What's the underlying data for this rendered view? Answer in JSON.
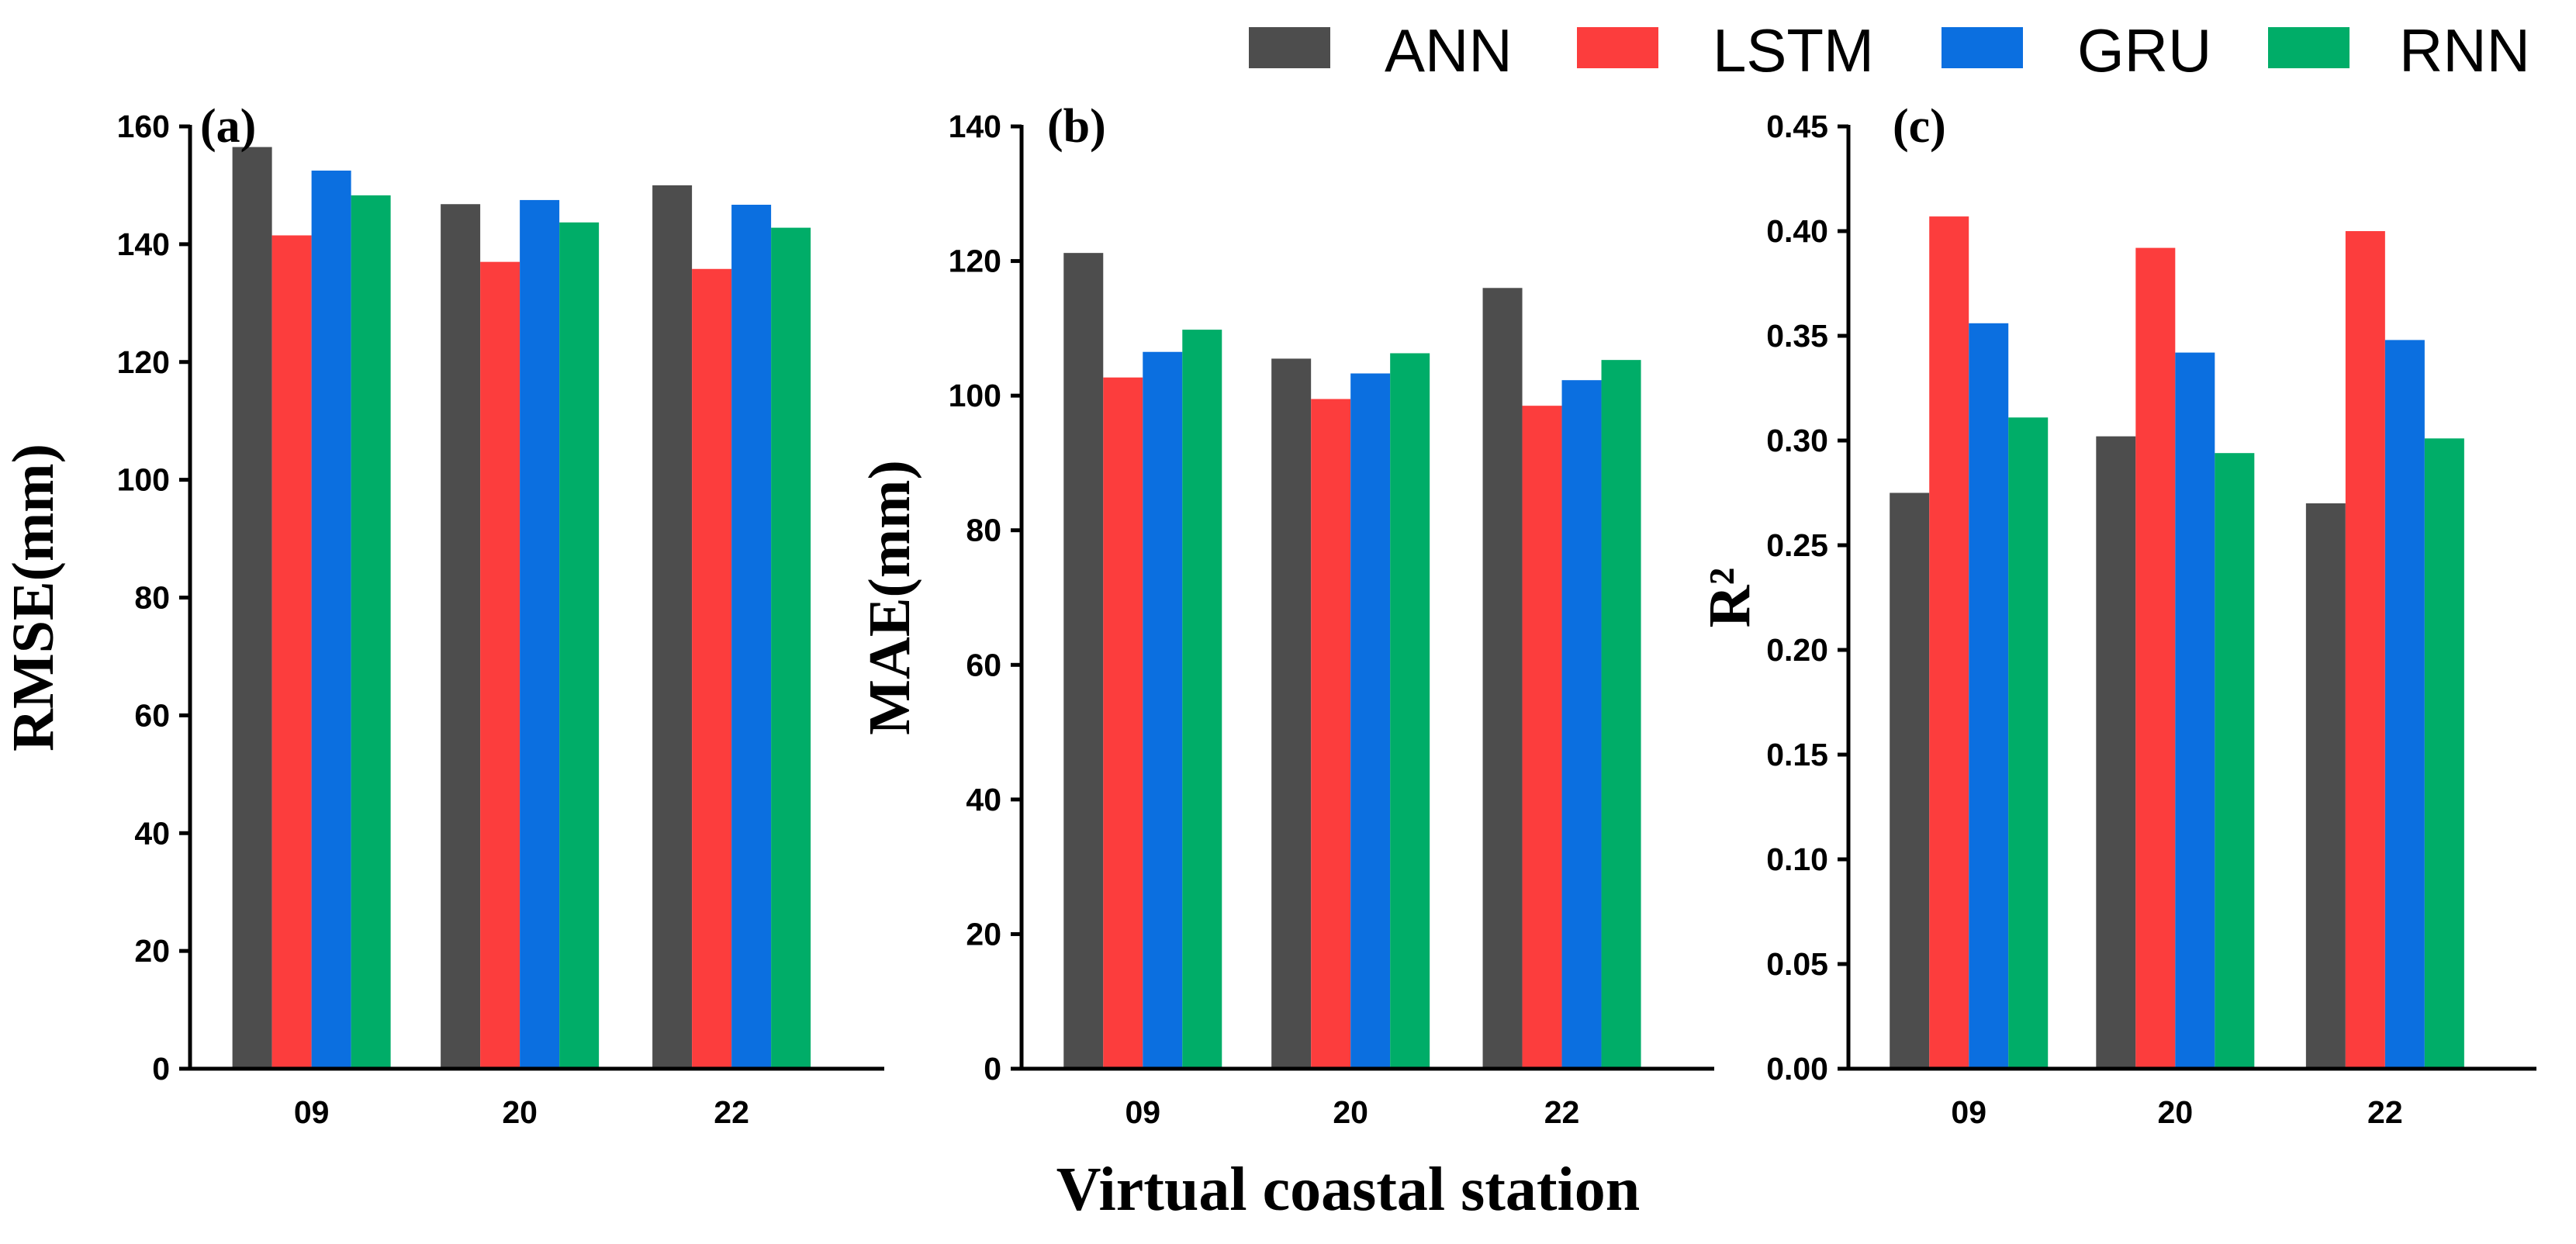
{
  "colors": {
    "ANN": "#4d4d4d",
    "LSTM": "#fc3d3d",
    "GRU": "#0b6fe0",
    "RNN": "#00ad68"
  },
  "legend": [
    "ANN",
    "LSTM",
    "GRU",
    "RNN"
  ],
  "x_title": "Virtual coastal station",
  "chart_data": [
    {
      "type": "bar",
      "panel": "(a)",
      "ylabel": "RMSE(mm)",
      "ylim": [
        0,
        160
      ],
      "yticks": [
        "0",
        "20",
        "40",
        "60",
        "80",
        "100",
        "120",
        "140",
        "160"
      ],
      "categories": [
        "09",
        "20",
        "22"
      ],
      "series": [
        {
          "name": "ANN",
          "values": [
            156.5,
            146.8,
            150.0
          ]
        },
        {
          "name": "LSTM",
          "values": [
            141.5,
            137.0,
            135.8
          ]
        },
        {
          "name": "GRU",
          "values": [
            152.5,
            147.5,
            146.7
          ]
        },
        {
          "name": "RNN",
          "values": [
            148.3,
            143.7,
            142.8
          ]
        }
      ]
    },
    {
      "type": "bar",
      "panel": "(b)",
      "ylabel": "MAE(mm)",
      "ylim": [
        0,
        140
      ],
      "yticks": [
        "0",
        "20",
        "40",
        "60",
        "80",
        "100",
        "120",
        "140"
      ],
      "categories": [
        "09",
        "20",
        "22"
      ],
      "series": [
        {
          "name": "ANN",
          "values": [
            121.2,
            105.5,
            116.0
          ]
        },
        {
          "name": "LSTM",
          "values": [
            102.7,
            99.5,
            98.5
          ]
        },
        {
          "name": "GRU",
          "values": [
            106.5,
            103.3,
            102.3
          ]
        },
        {
          "name": "RNN",
          "values": [
            109.8,
            106.3,
            105.3
          ]
        }
      ]
    },
    {
      "type": "bar",
      "panel": "(c)",
      "ylabel": "R²",
      "ylim": [
        0,
        0.45
      ],
      "yticks": [
        "0.00",
        "0.05",
        "0.10",
        "0.15",
        "0.20",
        "0.25",
        "0.30",
        "0.35",
        "0.40",
        "0.45"
      ],
      "categories": [
        "09",
        "20",
        "22"
      ],
      "series": [
        {
          "name": "ANN",
          "values": [
            0.275,
            0.302,
            0.27
          ]
        },
        {
          "name": "LSTM",
          "values": [
            0.407,
            0.392,
            0.4
          ]
        },
        {
          "name": "GRU",
          "values": [
            0.356,
            0.342,
            0.348
          ]
        },
        {
          "name": "RNN",
          "values": [
            0.311,
            0.294,
            0.301
          ]
        }
      ]
    }
  ]
}
